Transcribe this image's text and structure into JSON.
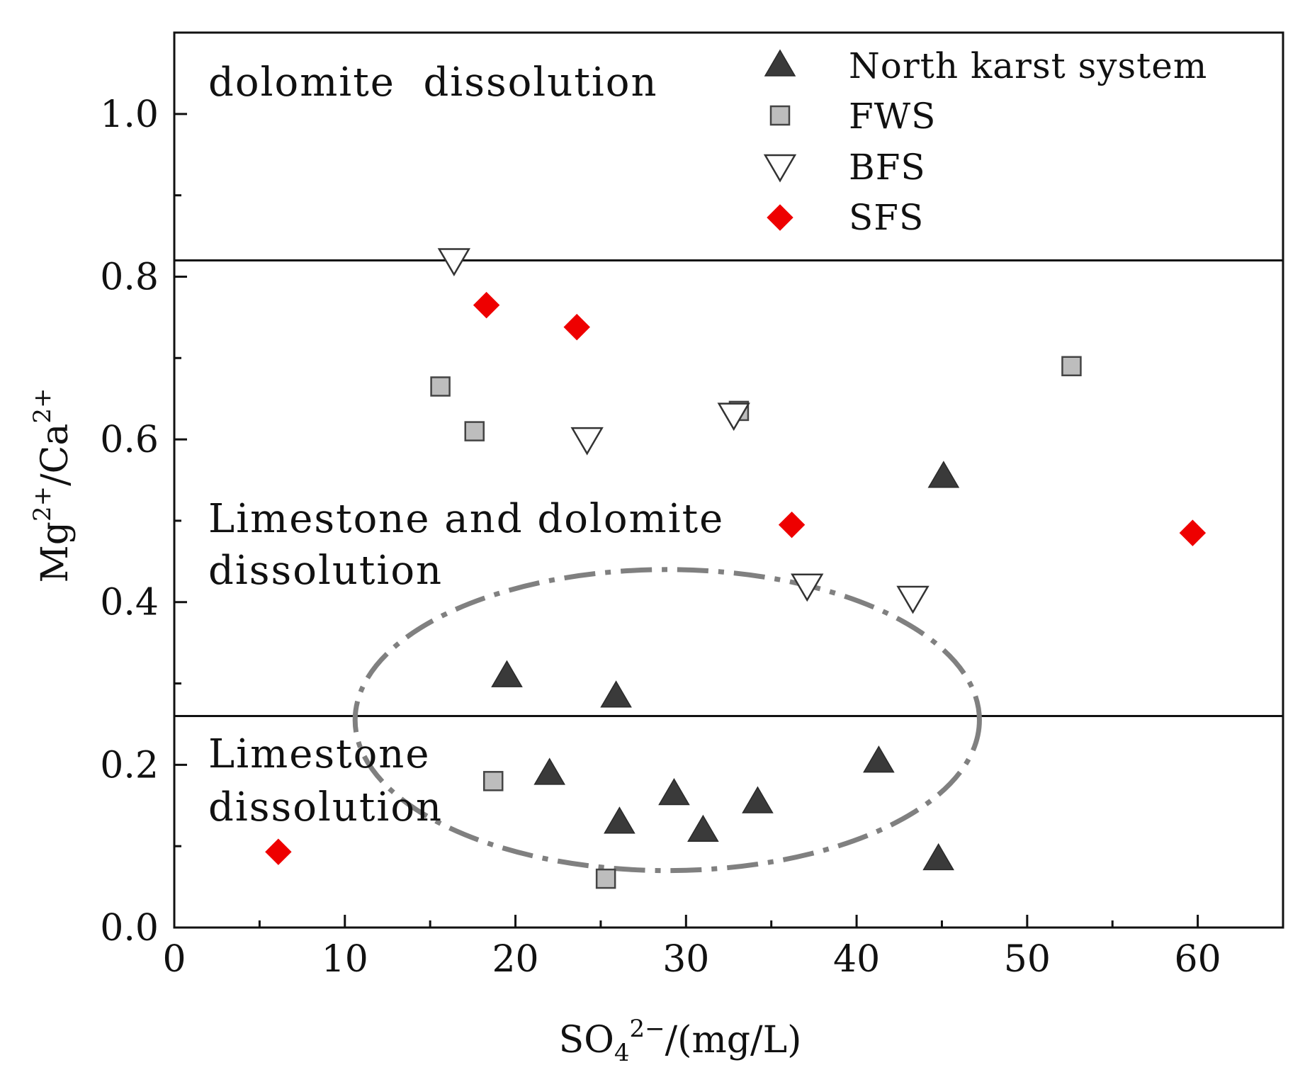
{
  "chart_data": {
    "type": "scatter",
    "xlabel_parts": {
      "base": "SO",
      "sub": "4",
      "sup": "2−",
      "unit": "/(mg/L)"
    },
    "ylabel_parts": {
      "a": "Mg",
      "a_sup": "2+",
      "slash": "/",
      "b": "Ca",
      "b_sup": "2+"
    },
    "xlim": [
      0,
      65
    ],
    "ylim": [
      0,
      1.1
    ],
    "x_ticks": [
      0,
      10,
      20,
      30,
      40,
      50,
      60
    ],
    "x_tick_labels": [
      "0",
      "10",
      "20",
      "30",
      "40",
      "50",
      "60"
    ],
    "y_ticks": [
      0.0,
      0.2,
      0.4,
      0.6,
      0.8,
      1.0
    ],
    "y_tick_labels": [
      "0.0",
      "0.2",
      "0.4",
      "0.6",
      "0.8",
      "1.0"
    ],
    "y_minor_ticks": [
      0.1,
      0.3,
      0.5,
      0.7,
      0.9
    ],
    "x_minor_ticks": [
      5,
      15,
      25,
      35,
      45,
      55
    ],
    "threshold_lines": [
      0.82,
      0.26
    ],
    "region_labels": [
      {
        "id": "dolomite",
        "lines": [
          "dolomite  dissolution"
        ]
      },
      {
        "id": "mixed",
        "lines": [
          "Limestone and dolomite",
          "dissolution"
        ]
      },
      {
        "id": "limestone",
        "lines": [
          "Limestone",
          "dissolution"
        ]
      }
    ],
    "ellipse": {
      "cx": 28.9,
      "cy": 0.255,
      "rx": 18.3,
      "ry": 0.185,
      "style": "dash-dot"
    },
    "series": [
      {
        "name": "North karst system",
        "marker": "triangle-up",
        "color": "#3a3a3a",
        "points": [
          [
            19.5,
            0.31
          ],
          [
            25.9,
            0.285
          ],
          [
            22.0,
            0.19
          ],
          [
            26.1,
            0.13
          ],
          [
            29.3,
            0.165
          ],
          [
            31.0,
            0.12
          ],
          [
            34.2,
            0.155
          ],
          [
            41.3,
            0.205
          ],
          [
            44.8,
            0.085
          ],
          [
            45.1,
            0.555
          ]
        ]
      },
      {
        "name": "FWS",
        "marker": "square",
        "color": "#bdbdbd",
        "points": [
          [
            15.6,
            0.665
          ],
          [
            17.6,
            0.61
          ],
          [
            18.7,
            0.18
          ],
          [
            25.3,
            0.06
          ],
          [
            33.1,
            0.635
          ],
          [
            52.6,
            0.69
          ]
        ]
      },
      {
        "name": "BFS",
        "marker": "triangle-down",
        "color": "#ffffff",
        "points": [
          [
            16.4,
            0.82
          ],
          [
            24.2,
            0.6
          ],
          [
            32.8,
            0.63
          ],
          [
            37.1,
            0.42
          ],
          [
            43.3,
            0.405
          ]
        ]
      },
      {
        "name": "SFS",
        "marker": "diamond",
        "color": "#ee0000",
        "points": [
          [
            6.1,
            0.093
          ],
          [
            18.3,
            0.765
          ],
          [
            23.6,
            0.738
          ],
          [
            36.2,
            0.495
          ],
          [
            59.7,
            0.485
          ]
        ]
      }
    ]
  }
}
